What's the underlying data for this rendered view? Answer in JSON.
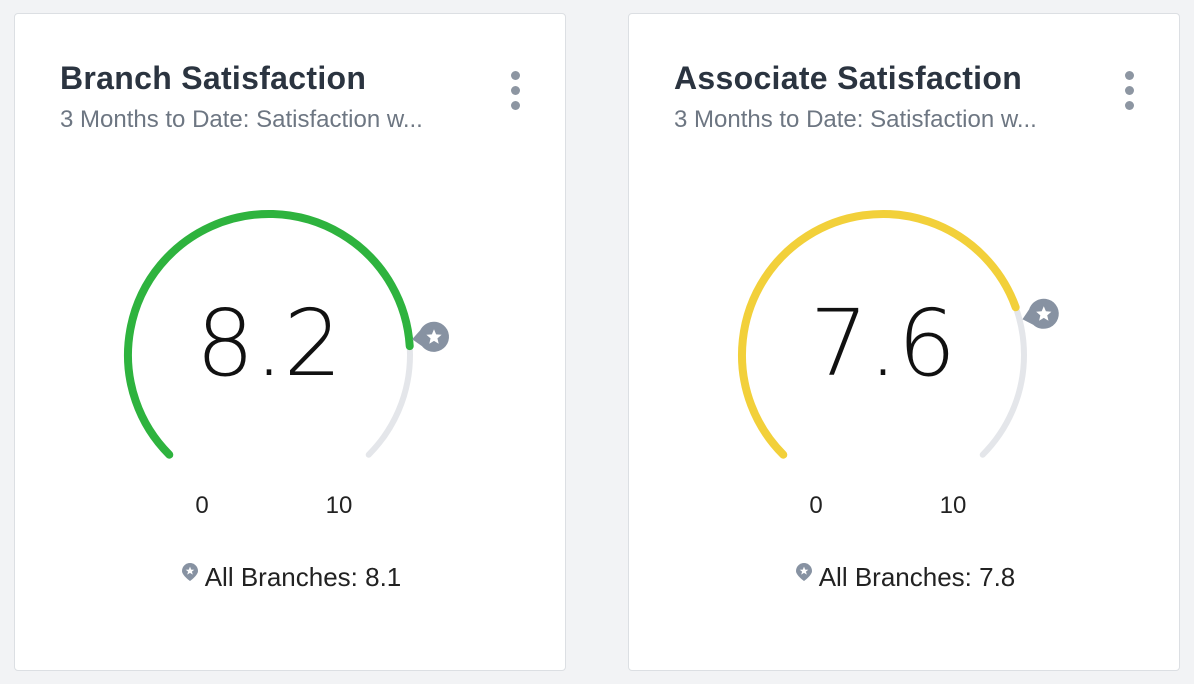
{
  "colors": {
    "track": "#e4e6ea",
    "marker": "#8792a2",
    "card_background": "#ffffff",
    "page_background": "#f2f3f5"
  },
  "cards": [
    {
      "title": "Branch Satisfaction",
      "subtitle": "3 Months to Date: Satisfaction w...",
      "value": 8.2,
      "value_label": "8.2",
      "min_label": "0",
      "max_label": "10",
      "min": 0,
      "max": 10,
      "benchmark_value": 8.1,
      "benchmark_text": "All Branches: 8.1",
      "color": "#2eb33e",
      "menu_icon": "vertical-ellipsis-icon",
      "marker_icon": "star-badge-icon"
    },
    {
      "title": "Associate Satisfaction",
      "subtitle": "3 Months to Date: Satisfaction w...",
      "value": 7.6,
      "value_label": "7.6",
      "min_label": "0",
      "max_label": "10",
      "min": 0,
      "max": 10,
      "benchmark_value": 7.8,
      "benchmark_text": "All Branches: 7.8",
      "color": "#f2d03a",
      "menu_icon": "vertical-ellipsis-icon",
      "marker_icon": "star-badge-icon"
    }
  ]
}
